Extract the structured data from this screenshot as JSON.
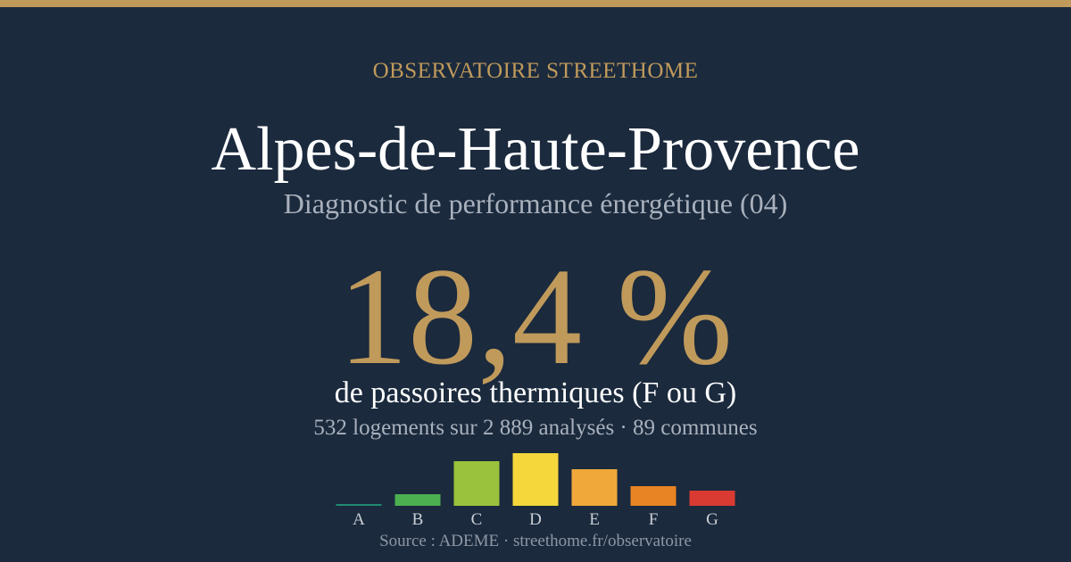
{
  "header": {
    "kicker": "OBSERVATOIRE STREETHOME",
    "title": "Alpes-de-Haute-Provence",
    "subtitle": "Diagnostic de performance énergétique (04)"
  },
  "stat": {
    "value": "18,4 %",
    "caption": "de passoires thermiques (F ou G)",
    "detail": "532 logements sur 2 889 analysés · 89 communes"
  },
  "footer": {
    "source": "Source : ADEME · streethome.fr/observatoire"
  },
  "chart_data": {
    "type": "bar",
    "categories": [
      "A",
      "B",
      "C",
      "D",
      "E",
      "F",
      "G"
    ],
    "values": [
      2,
      13,
      50,
      59,
      41,
      22,
      17
    ],
    "colors": [
      "#1f8a70",
      "#4caf50",
      "#9bc23c",
      "#f5d73c",
      "#f0a83a",
      "#e88424",
      "#d93a32"
    ],
    "title": "",
    "xlabel": "",
    "ylabel": "",
    "ylim": [
      0,
      59
    ],
    "grid": false,
    "legend": "none"
  }
}
